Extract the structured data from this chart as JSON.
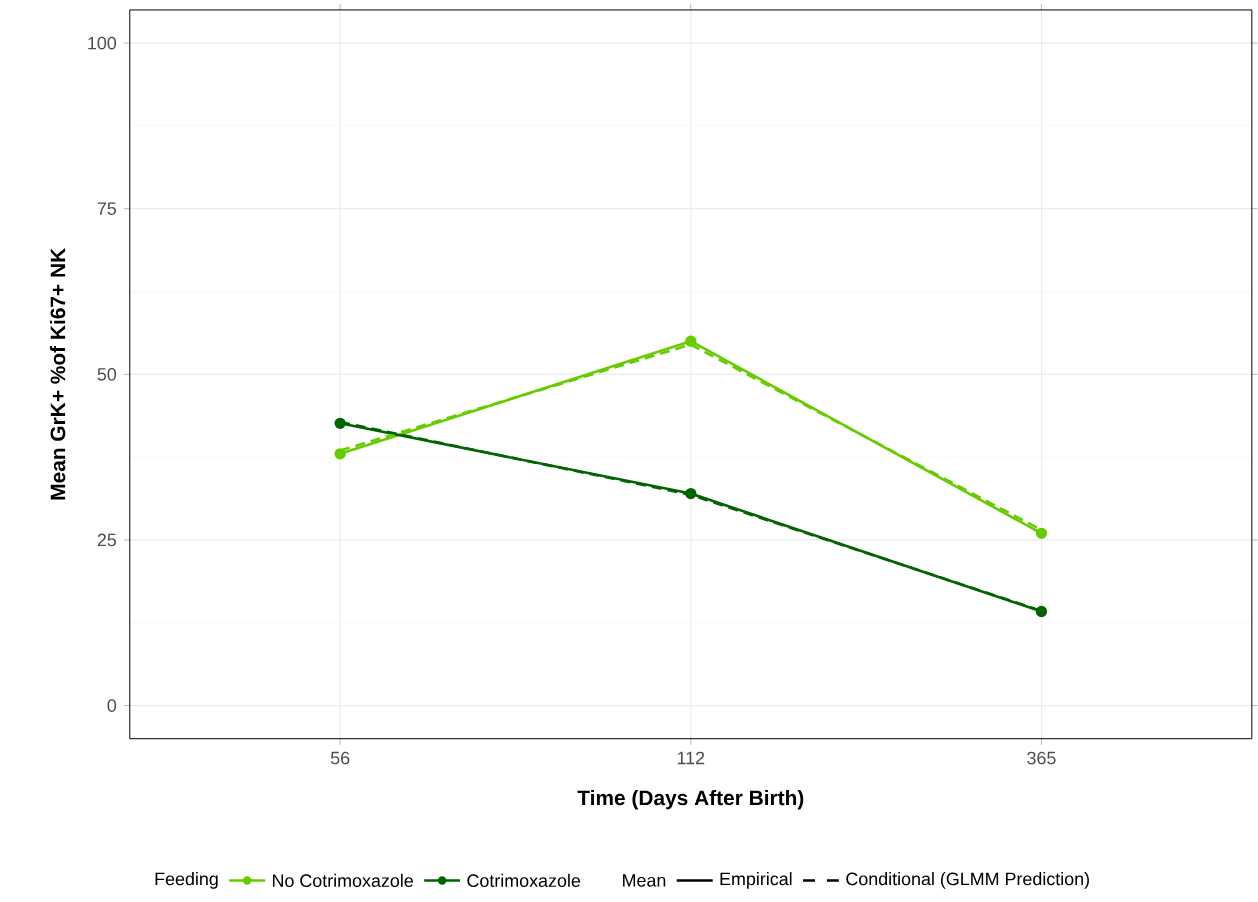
{
  "chart_data": {
    "type": "line",
    "xlabel": "Time (Days After Birth)",
    "ylabel": "Mean GrK+ %of Ki67+ NK",
    "categories": [
      "56",
      "112",
      "365"
    ],
    "series": [
      {
        "name": "No Cotrimoxazole",
        "color": "#66cc00",
        "values": [
          38,
          55,
          26
        ],
        "line_style": "solid",
        "marker": "circle"
      },
      {
        "name": "Cotrimoxazole",
        "color": "#006400",
        "values": [
          42.6,
          32,
          14.2
        ],
        "line_style": "solid",
        "marker": "circle"
      },
      {
        "color": "#66cc00",
        "values": [
          38.5,
          54.5,
          26.5
        ],
        "line_style": "dashed",
        "marker": "none"
      },
      {
        "color": "#006400",
        "values": [
          42.8,
          31.8,
          14.3
        ],
        "line_style": "dashed",
        "marker": "none"
      }
    ],
    "ylim": [
      -5,
      105
    ],
    "yticks": [
      0,
      25,
      50,
      75,
      100
    ],
    "grid": true,
    "legend": "bottom",
    "legend_title": "Feeding",
    "annotations": [
      "Mean",
      "Empirical",
      "Conditional (GLMM Prediction)"
    ]
  }
}
